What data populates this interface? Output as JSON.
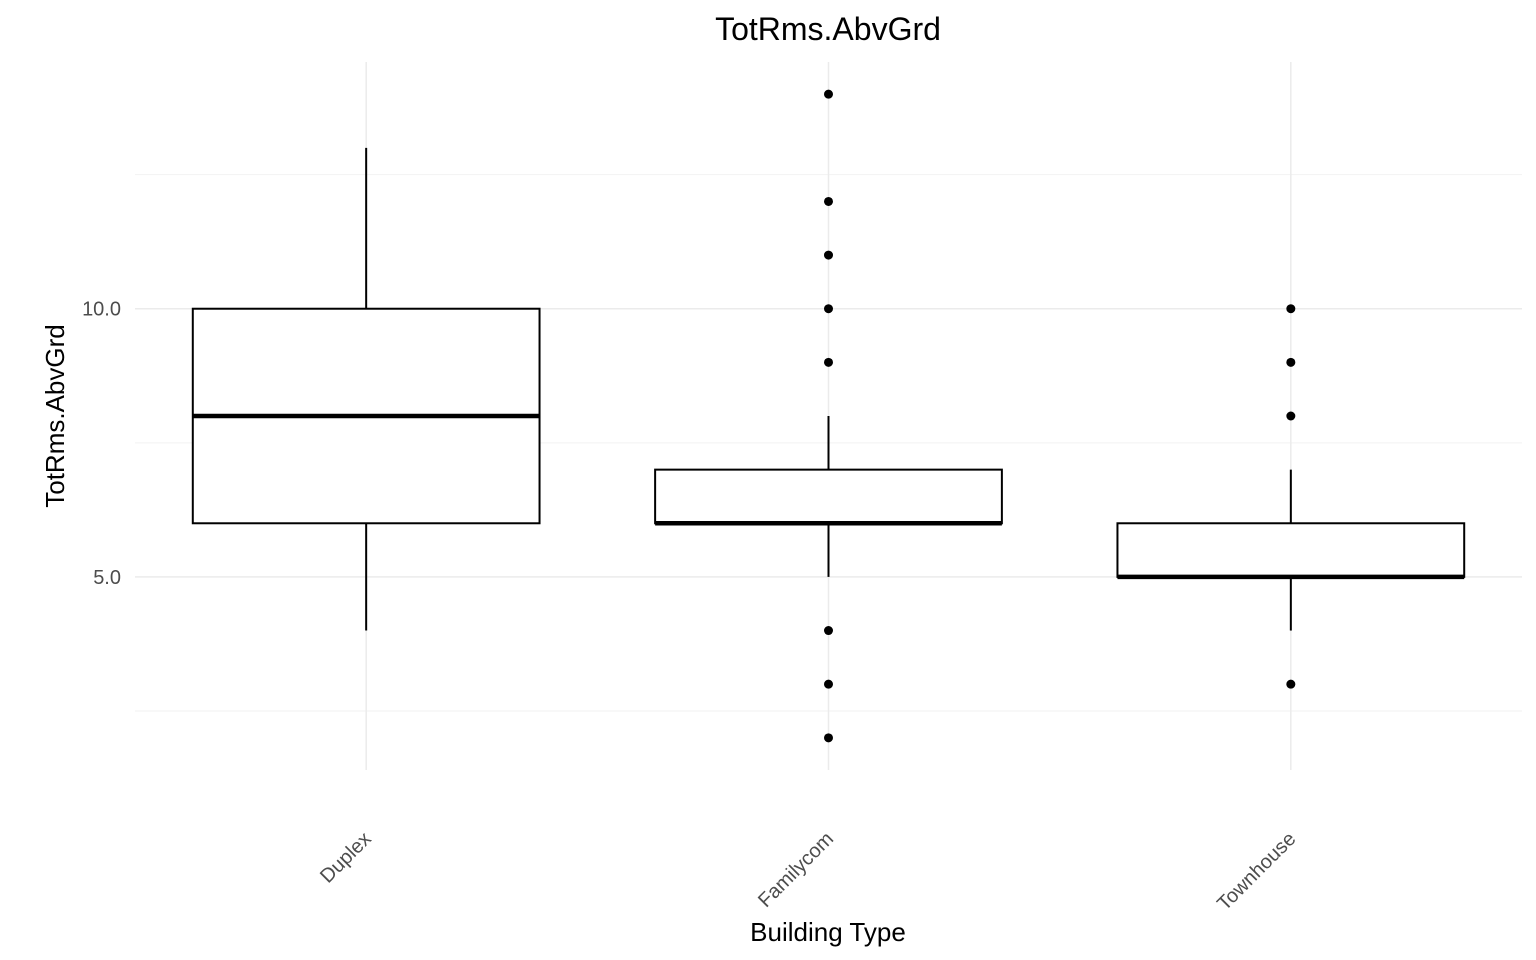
{
  "chart_data": {
    "type": "boxplot",
    "title": "TotRms.AbvGrd",
    "xlabel": "Building Type",
    "ylabel": "TotRms.AbvGrd",
    "categories": [
      "Duplex",
      "Familycom",
      "Townhouse"
    ],
    "boxes": [
      {
        "category": "Duplex",
        "whisker_low": 4,
        "q1": 6,
        "median": 8,
        "q3": 10,
        "whisker_high": 13,
        "outliers": []
      },
      {
        "category": "Familycom",
        "whisker_low": 5,
        "q1": 6,
        "median": 6,
        "q3": 7,
        "whisker_high": 8,
        "outliers": [
          14,
          12,
          11,
          10,
          9,
          4,
          3,
          2
        ]
      },
      {
        "category": "Townhouse",
        "whisker_low": 4,
        "q1": 5,
        "median": 5,
        "q3": 6,
        "whisker_high": 7,
        "outliers": [
          10,
          9,
          8,
          3
        ]
      }
    ],
    "y_ticks": [
      5.0,
      10.0
    ],
    "y_tick_labels": [
      "5.0",
      "10.0"
    ],
    "y_minor_grid": [
      2.5,
      7.5,
      12.5
    ],
    "ylim": [
      1.4,
      14.6
    ],
    "grid": true,
    "legend": "none"
  }
}
